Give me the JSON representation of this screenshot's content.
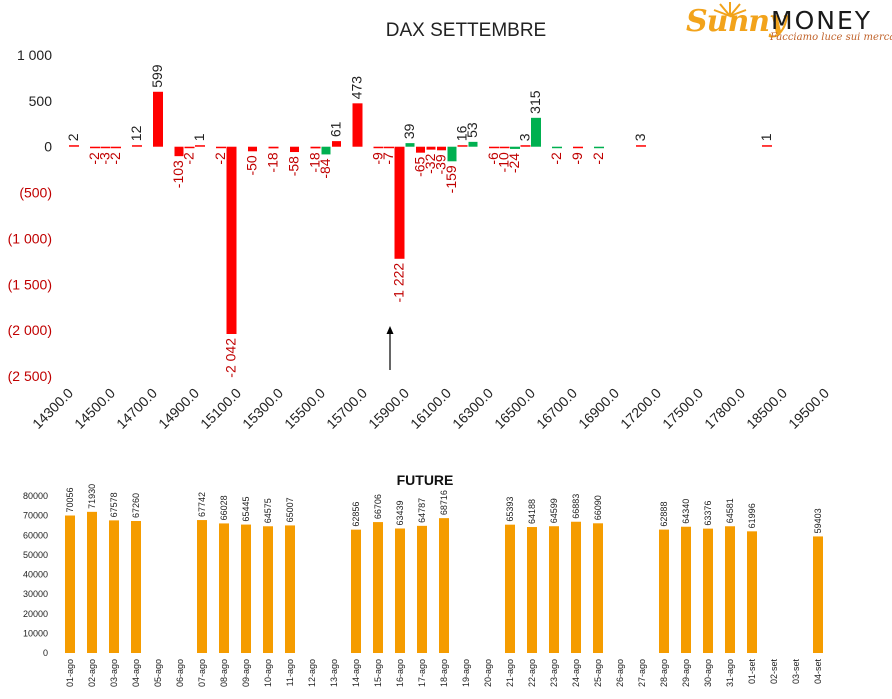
{
  "logo": {
    "brand_script": "Sunny",
    "brand_word": "MONEY",
    "tagline": "Facciamo luce sui mercati"
  },
  "colors": {
    "negative": "#ff0000",
    "positive": "#00b050",
    "future_bar": "#f59c00",
    "negative_tick": "#c00000"
  },
  "chart_data": [
    {
      "type": "bar",
      "title": "DAX SETTEMBRE",
      "y_ticks": [
        "1 000",
        "500",
        "0",
        "(500)",
        "(1 000)",
        "(1 500)",
        "(2 000)",
        "(2 500)"
      ],
      "ylim": [
        -2500,
        1000
      ],
      "x_ticks": [
        "14300.0",
        "14500.0",
        "14700.0",
        "14900.0",
        "15100.0",
        "15300.0",
        "15500.0",
        "15700.0",
        "15900.0",
        "16100.0",
        "16300.0",
        "16500.0",
        "16700.0",
        "16900.0",
        "17200.0",
        "17500.0",
        "17800.0",
        "18500.0",
        "19500.0"
      ],
      "grid": false,
      "series": [
        {
          "values": [
            [
              0,
              2,
              "2"
            ],
            [
              1,
              -2,
              "-2"
            ],
            [
              1.5,
              -3,
              "-3"
            ],
            [
              2,
              -2,
              "-2"
            ],
            [
              3,
              12,
              "12"
            ],
            [
              4,
              599,
              "599"
            ],
            [
              5,
              -103,
              "-103"
            ],
            [
              5.5,
              -2,
              "-2"
            ],
            [
              6,
              1,
              "1"
            ],
            [
              7,
              -2,
              "-2"
            ],
            [
              7.5,
              -2042,
              "-2 042"
            ],
            [
              8.5,
              -50,
              "-50"
            ],
            [
              9.5,
              -18,
              "-18"
            ],
            [
              10.5,
              -58,
              "-58"
            ],
            [
              11.5,
              -18,
              "-18"
            ],
            [
              12,
              -84,
              "-84"
            ],
            [
              12.5,
              61,
              "61"
            ],
            [
              13.5,
              473,
              "473"
            ],
            [
              14.5,
              -9,
              "-9"
            ],
            [
              15,
              -7,
              "-7"
            ],
            [
              15.5,
              -1222,
              "-1 222"
            ],
            [
              16,
              39,
              "39"
            ],
            [
              16.5,
              -65,
              "-65"
            ],
            [
              17,
              -32,
              "-32"
            ],
            [
              17.5,
              -39,
              "-39"
            ],
            [
              18,
              -159,
              "-159"
            ],
            [
              18.5,
              16,
              "16"
            ],
            [
              19,
              53,
              "53"
            ],
            [
              20,
              -6,
              "-6"
            ],
            [
              20.5,
              -10,
              "-10"
            ],
            [
              21,
              -24,
              "-24"
            ],
            [
              21.5,
              3,
              "3"
            ],
            [
              22,
              315,
              "315"
            ],
            [
              23,
              -2,
              "-2"
            ],
            [
              24,
              -9,
              "-9"
            ],
            [
              25,
              -2,
              "-2"
            ],
            [
              27,
              3,
              "3"
            ],
            [
              33,
              1,
              "1"
            ]
          ]
        }
      ],
      "annotation": "arrow at 15900.0"
    },
    {
      "type": "bar",
      "title": "FUTURE",
      "ylim": [
        0,
        80000
      ],
      "y_ticks": [
        "80000",
        "70000",
        "60000",
        "50000",
        "40000",
        "30000",
        "20000",
        "10000",
        "0"
      ],
      "categories": [
        "01-ago",
        "02-ago",
        "03-ago",
        "04-ago",
        "05-ago",
        "06-ago",
        "07-ago",
        "08-ago",
        "09-ago",
        "10-ago",
        "11-ago",
        "12-ago",
        "13-ago",
        "14-ago",
        "15-ago",
        "16-ago",
        "17-ago",
        "18-ago",
        "19-ago",
        "20-ago",
        "21-ago",
        "22-ago",
        "23-ago",
        "24-ago",
        "25-ago",
        "26-ago",
        "27-ago",
        "28-ago",
        "29-ago",
        "30-ago",
        "31-ago",
        "01-set",
        "02-set",
        "03-set",
        "04-set"
      ],
      "values": [
        70056,
        71930,
        67578,
        67260,
        null,
        null,
        67742,
        66028,
        65445,
        64575,
        65007,
        null,
        null,
        62856,
        66706,
        63439,
        64787,
        68716,
        null,
        null,
        65393,
        64188,
        64599,
        66883,
        66090,
        null,
        null,
        62888,
        64340,
        63376,
        64581,
        61996,
        null,
        null,
        59403
      ],
      "grid": false
    }
  ]
}
